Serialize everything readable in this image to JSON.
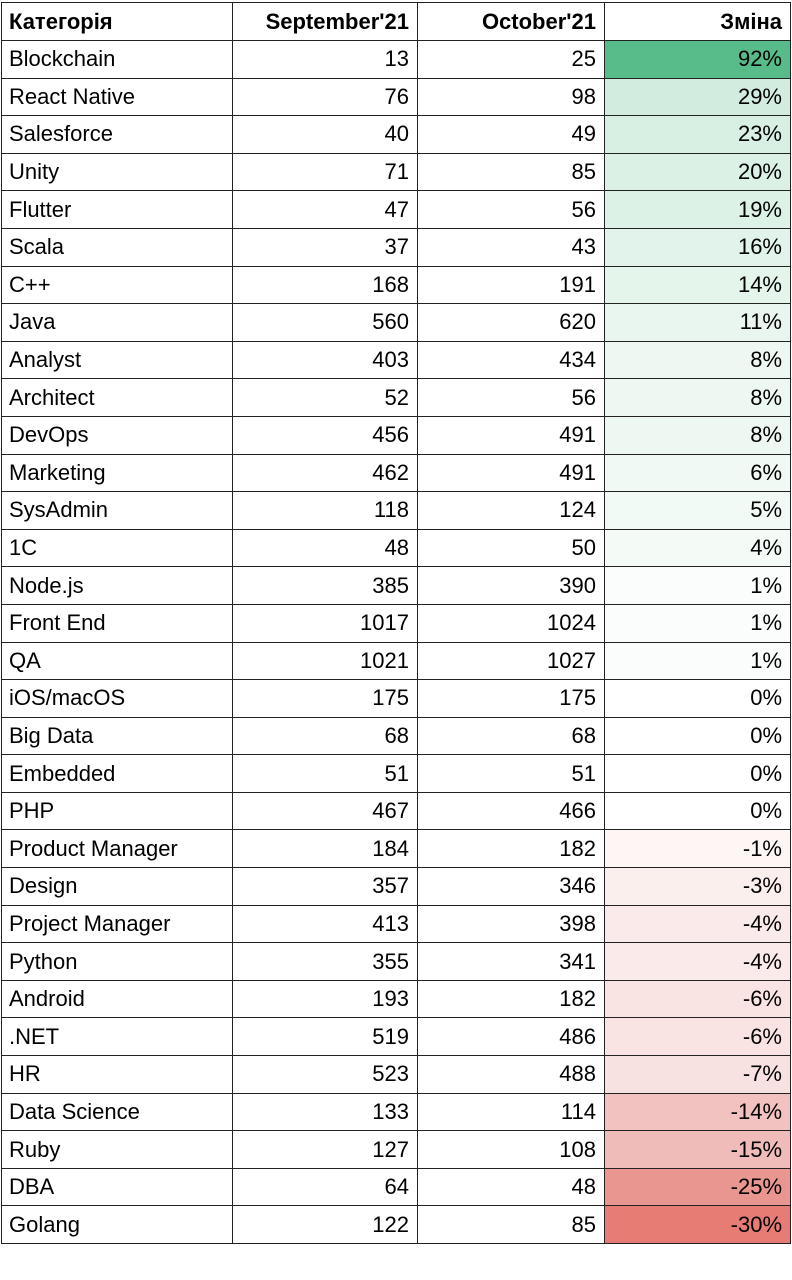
{
  "table": {
    "header": [
      "Категорія",
      "September'21",
      "October'21",
      "Зміна"
    ],
    "rows": [
      {
        "category": "Blockchain",
        "september": 13,
        "october": 25,
        "change": "92%",
        "color": "#57bb8a"
      },
      {
        "category": "React Native",
        "september": 76,
        "october": 98,
        "change": "29%",
        "color": "#d2ede0"
      },
      {
        "category": "Salesforce",
        "september": 40,
        "october": 49,
        "change": "23%",
        "color": "#d8f0e4"
      },
      {
        "category": "Unity",
        "september": 71,
        "october": 85,
        "change": "20%",
        "color": "#dbf1e6"
      },
      {
        "category": "Flutter",
        "september": 47,
        "october": 56,
        "change": "19%",
        "color": "#ddf2e7"
      },
      {
        "category": "Scala",
        "september": 37,
        "october": 43,
        "change": "16%",
        "color": "#e1f3ea"
      },
      {
        "category": "C++",
        "september": 168,
        "october": 191,
        "change": "14%",
        "color": "#e4f5ec"
      },
      {
        "category": "Java",
        "september": 560,
        "october": 620,
        "change": "11%",
        "color": "#e8f6ef"
      },
      {
        "category": "Analyst",
        "september": 403,
        "october": 434,
        "change": "8%",
        "color": "#edf8f2"
      },
      {
        "category": "Architect",
        "september": 52,
        "october": 56,
        "change": "8%",
        "color": "#edf8f2"
      },
      {
        "category": "DevOps",
        "september": 456,
        "october": 491,
        "change": "8%",
        "color": "#edf8f2"
      },
      {
        "category": "Marketing",
        "september": 462,
        "october": 491,
        "change": "6%",
        "color": "#f0f9f4"
      },
      {
        "category": "SysAdmin",
        "september": 118,
        "october": 124,
        "change": "5%",
        "color": "#f2faf6"
      },
      {
        "category": "1C",
        "september": 48,
        "october": 50,
        "change": "4%",
        "color": "#f4fbf7"
      },
      {
        "category": "Node.js",
        "september": 385,
        "october": 390,
        "change": "1%",
        "color": "#fafdfb"
      },
      {
        "category": "Front End",
        "september": 1017,
        "october": 1024,
        "change": "1%",
        "color": "#fafdfb"
      },
      {
        "category": "QA",
        "september": 1021,
        "october": 1027,
        "change": "1%",
        "color": "#fafdfb"
      },
      {
        "category": "iOS/macOS",
        "september": 175,
        "october": 175,
        "change": "0%",
        "color": "#ffffff"
      },
      {
        "category": "Big Data",
        "september": 68,
        "october": 68,
        "change": "0%",
        "color": "#ffffff"
      },
      {
        "category": "Embedded",
        "september": 51,
        "october": 51,
        "change": "0%",
        "color": "#ffffff"
      },
      {
        "category": "PHP",
        "september": 467,
        "october": 466,
        "change": "0%",
        "color": "#ffffff"
      },
      {
        "category": "Product Manager",
        "september": 184,
        "october": 182,
        "change": "-1%",
        "color": "#fdf6f5"
      },
      {
        "category": "Design",
        "september": 357,
        "october": 346,
        "change": "-3%",
        "color": "#fbefee"
      },
      {
        "category": "Project Manager",
        "september": 413,
        "october": 398,
        "change": "-4%",
        "color": "#faeae9"
      },
      {
        "category": "Python",
        "september": 355,
        "october": 341,
        "change": "-4%",
        "color": "#faeae9"
      },
      {
        "category": "Android",
        "september": 193,
        "october": 182,
        "change": "-6%",
        "color": "#f9e4e3"
      },
      {
        "category": ".NET",
        "september": 519,
        "october": 486,
        "change": "-6%",
        "color": "#f9e4e3"
      },
      {
        "category": "HR",
        "september": 523,
        "october": 488,
        "change": "-7%",
        "color": "#f8e2e1"
      },
      {
        "category": "Data Science",
        "september": 133,
        "october": 114,
        "change": "-14%",
        "color": "#f1c2bf"
      },
      {
        "category": "Ruby",
        "september": 127,
        "october": 108,
        "change": "-15%",
        "color": "#efbcb9"
      },
      {
        "category": "DBA",
        "september": 64,
        "october": 48,
        "change": "-25%",
        "color": "#e99590"
      },
      {
        "category": "Golang",
        "september": 122,
        "october": 85,
        "change": "-30%",
        "color": "#e67c73"
      }
    ]
  }
}
